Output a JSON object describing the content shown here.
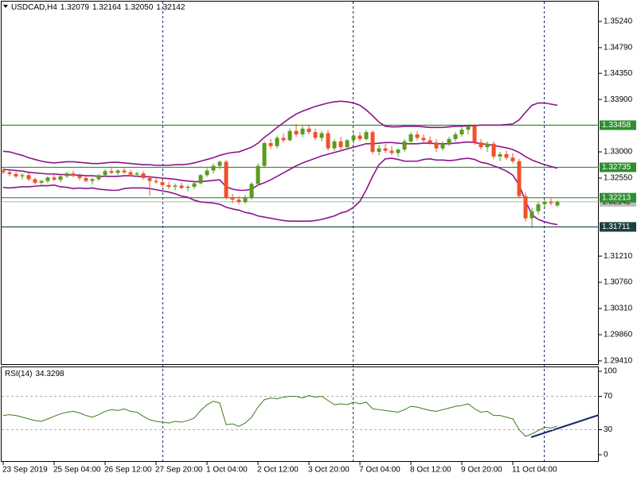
{
  "chart_data": [
    {
      "type": "candlestick",
      "title": "USDCAD,H4",
      "last_labels": [
        "1.32079",
        "1.32164",
        "1.32050",
        "1.32142"
      ],
      "categories": [
        "23 Sep 2019",
        null,
        null,
        null,
        null,
        null,
        null,
        null,
        "25 Sep 04:00",
        null,
        null,
        null,
        null,
        null,
        null,
        null,
        "26 Sep 12:00",
        null,
        null,
        null,
        null,
        null,
        null,
        null,
        "27 Sep 20:00",
        null,
        null,
        null,
        null,
        null,
        null,
        null,
        "1 Oct 04:00",
        null,
        null,
        null,
        null,
        null,
        null,
        null,
        "2 Oct 12:00",
        null,
        null,
        null,
        null,
        null,
        null,
        null,
        "3 Oct 20:00",
        null,
        null,
        null,
        null,
        null,
        null,
        null,
        "7 Oct 04:00",
        null,
        null,
        null,
        null,
        null,
        null,
        null,
        "8 Oct 12:00",
        null,
        null,
        null,
        null,
        null,
        null,
        null,
        "9 Oct 20:00",
        null,
        null,
        null,
        null,
        null,
        null,
        null,
        "11 Oct 04:00",
        null,
        null,
        null,
        null,
        null,
        null,
        null
      ],
      "candles": [
        [
          1.3268,
          1.3272,
          1.3262,
          1.3265
        ],
        [
          1.3265,
          1.3268,
          1.3258,
          1.3262
        ],
        [
          1.3262,
          1.3266,
          1.3255,
          1.3258
        ],
        [
          1.3258,
          1.3263,
          1.3252,
          1.326
        ],
        [
          1.326,
          1.3264,
          1.325,
          1.3253
        ],
        [
          1.3253,
          1.3256,
          1.3244,
          1.3247
        ],
        [
          1.3247,
          1.3252,
          1.324,
          1.325
        ],
        [
          1.325,
          1.3258,
          1.3246,
          1.3256
        ],
        [
          1.3256,
          1.3262,
          1.325,
          1.3252
        ],
        [
          1.3252,
          1.326,
          1.3248,
          1.3258
        ],
        [
          1.3258,
          1.3266,
          1.3255,
          1.3263
        ],
        [
          1.3263,
          1.3268,
          1.3256,
          1.3259
        ],
        [
          1.3259,
          1.3263,
          1.3251,
          1.3255
        ],
        [
          1.3255,
          1.3261,
          1.3248,
          1.325
        ],
        [
          1.325,
          1.3256,
          1.3244,
          1.3253
        ],
        [
          1.3253,
          1.3262,
          1.325,
          1.326
        ],
        [
          1.326,
          1.327,
          1.3257,
          1.3267
        ],
        [
          1.3267,
          1.3272,
          1.3262,
          1.3264
        ],
        [
          1.3264,
          1.327,
          1.326,
          1.3268
        ],
        [
          1.3268,
          1.3272,
          1.3262,
          1.3265
        ],
        [
          1.3265,
          1.3269,
          1.3258,
          1.3261
        ],
        [
          1.3261,
          1.3266,
          1.3257,
          1.3263
        ],
        [
          1.3263,
          1.3267,
          1.3252,
          1.3255
        ],
        [
          1.3255,
          1.3259,
          1.3225,
          1.325
        ],
        [
          1.325,
          1.3256,
          1.3245,
          1.3248
        ],
        [
          1.3248,
          1.3253,
          1.324,
          1.3243
        ],
        [
          1.3243,
          1.3248,
          1.3236,
          1.324
        ],
        [
          1.324,
          1.3246,
          1.3234,
          1.3242
        ],
        [
          1.3242,
          1.3247,
          1.3236,
          1.3238
        ],
        [
          1.3238,
          1.3243,
          1.3232,
          1.324
        ],
        [
          1.324,
          1.3248,
          1.3236,
          1.3246
        ],
        [
          1.3246,
          1.3262,
          1.3244,
          1.326
        ],
        [
          1.326,
          1.3272,
          1.3257,
          1.3268
        ],
        [
          1.3268,
          1.328,
          1.3263,
          1.3276
        ],
        [
          1.3276,
          1.3285,
          1.327,
          1.3283
        ],
        [
          1.3283,
          1.3286,
          1.3218,
          1.3222
        ],
        [
          1.3222,
          1.3228,
          1.3212,
          1.3218
        ],
        [
          1.3218,
          1.3224,
          1.321,
          1.3214
        ],
        [
          1.3214,
          1.3226,
          1.3211,
          1.3222
        ],
        [
          1.3222,
          1.3248,
          1.3218,
          1.3245
        ],
        [
          1.3245,
          1.328,
          1.3242,
          1.3276
        ],
        [
          1.3276,
          1.3318,
          1.3274,
          1.3315
        ],
        [
          1.3315,
          1.3322,
          1.3305,
          1.331
        ],
        [
          1.331,
          1.3328,
          1.3306,
          1.3324
        ],
        [
          1.3324,
          1.3332,
          1.3316,
          1.332
        ],
        [
          1.332,
          1.334,
          1.3318,
          1.3336
        ],
        [
          1.3336,
          1.3348,
          1.3326,
          1.333
        ],
        [
          1.333,
          1.3344,
          1.3325,
          1.334
        ],
        [
          1.334,
          1.3346,
          1.333,
          1.3334
        ],
        [
          1.3334,
          1.334,
          1.332,
          1.3324
        ],
        [
          1.3324,
          1.3336,
          1.3318,
          1.3332
        ],
        [
          1.3332,
          1.3338,
          1.3302,
          1.3306
        ],
        [
          1.3306,
          1.3322,
          1.3302,
          1.3318
        ],
        [
          1.3318,
          1.3326,
          1.3304,
          1.3308
        ],
        [
          1.3308,
          1.3322,
          1.3305,
          1.332
        ],
        [
          1.332,
          1.3332,
          1.3314,
          1.3328
        ],
        [
          1.3328,
          1.3334,
          1.3318,
          1.3322
        ],
        [
          1.3322,
          1.3338,
          1.3319,
          1.3334
        ],
        [
          1.3334,
          1.3337,
          1.3296,
          1.33
        ],
        [
          1.33,
          1.3312,
          1.3294,
          1.3306
        ],
        [
          1.3306,
          1.3314,
          1.3298,
          1.3302
        ],
        [
          1.3302,
          1.331,
          1.3294,
          1.3298
        ],
        [
          1.3298,
          1.3306,
          1.3292,
          1.3304
        ],
        [
          1.3304,
          1.3322,
          1.33,
          1.3318
        ],
        [
          1.3318,
          1.3334,
          1.3314,
          1.333
        ],
        [
          1.333,
          1.3336,
          1.332,
          1.3324
        ],
        [
          1.3324,
          1.333,
          1.3316,
          1.332
        ],
        [
          1.332,
          1.3326,
          1.3312,
          1.3316
        ],
        [
          1.3316,
          1.3322,
          1.33,
          1.3306
        ],
        [
          1.3306,
          1.3318,
          1.3302,
          1.3314
        ],
        [
          1.3314,
          1.3326,
          1.331,
          1.3322
        ],
        [
          1.3322,
          1.3334,
          1.3318,
          1.333
        ],
        [
          1.333,
          1.3342,
          1.3326,
          1.3338
        ],
        [
          1.3338,
          1.3348,
          1.333,
          1.3344
        ],
        [
          1.3344,
          1.3348,
          1.3312,
          1.3316
        ],
        [
          1.3316,
          1.3322,
          1.3304,
          1.3308
        ],
        [
          1.3308,
          1.3318,
          1.33,
          1.3314
        ],
        [
          1.3314,
          1.3318,
          1.3288,
          1.3292
        ],
        [
          1.3292,
          1.33,
          1.3284,
          1.3296
        ],
        [
          1.3296,
          1.3302,
          1.3286,
          1.329
        ],
        [
          1.329,
          1.3298,
          1.328,
          1.3284
        ],
        [
          1.3284,
          1.3288,
          1.322,
          1.3224
        ],
        [
          1.3224,
          1.323,
          1.318,
          1.3186
        ],
        [
          1.3186,
          1.3204,
          1.3169,
          1.3198
        ],
        [
          1.3198,
          1.3214,
          1.3192,
          1.321
        ],
        [
          1.321,
          1.3218,
          1.3204,
          1.3214
        ],
        [
          1.3214,
          1.322,
          1.3208,
          1.3212
        ],
        [
          1.32079,
          1.32164,
          1.3205,
          1.32142
        ]
      ],
      "up_color": "#5b9a1f",
      "down_color": "#f0502a",
      "bands": {
        "color": "#8b158b",
        "upper": [
          1.3301,
          1.33,
          1.3297,
          1.3294,
          1.329,
          1.3287,
          1.3284,
          1.3282,
          1.3281,
          1.3282,
          1.3283,
          1.3283,
          1.3282,
          1.3281,
          1.328,
          1.328,
          1.3281,
          1.3282,
          1.3282,
          1.3281,
          1.328,
          1.3279,
          1.3278,
          1.3278,
          1.3277,
          1.3277,
          1.3277,
          1.3278,
          1.3278,
          1.3279,
          1.3281,
          1.3284,
          1.3287,
          1.329,
          1.3294,
          1.3297,
          1.3299,
          1.33,
          1.3304,
          1.3308,
          1.3315,
          1.3325,
          1.3333,
          1.3342,
          1.335,
          1.3358,
          1.3365,
          1.337,
          1.3374,
          1.3378,
          1.3381,
          1.3384,
          1.3386,
          1.3387,
          1.3386,
          1.3384,
          1.338,
          1.3372,
          1.3362,
          1.3351,
          1.3344,
          1.3343,
          1.3343,
          1.3344,
          1.3344,
          1.3344,
          1.3343,
          1.3342,
          1.3342,
          1.3342,
          1.3343,
          1.3344,
          1.3344,
          1.3345,
          1.3345,
          1.3346,
          1.3346,
          1.3346,
          1.3346,
          1.3347,
          1.3348,
          1.3355,
          1.3368,
          1.338,
          1.3384,
          1.3384,
          1.3382,
          1.338
        ],
        "middle": [
          1.327,
          1.3269,
          1.3268,
          1.3267,
          1.3265,
          1.3264,
          1.3263,
          1.3262,
          1.3262,
          1.3261,
          1.3261,
          1.326,
          1.326,
          1.3259,
          1.3259,
          1.3258,
          1.3258,
          1.3258,
          1.3258,
          1.3259,
          1.3259,
          1.3258,
          1.3258,
          1.3257,
          1.3256,
          1.3255,
          1.3254,
          1.3253,
          1.3251,
          1.325,
          1.3249,
          1.3249,
          1.325,
          1.3251,
          1.3252,
          1.324,
          1.3236,
          1.3234,
          1.3234,
          1.3236,
          1.3243,
          1.3247,
          1.3252,
          1.3258,
          1.3264,
          1.327,
          1.3276,
          1.3281,
          1.3285,
          1.3289,
          1.3293,
          1.3296,
          1.3299,
          1.3302,
          1.3305,
          1.3308,
          1.3311,
          1.3314,
          1.3314,
          1.3315,
          1.3316,
          1.3316,
          1.3315,
          1.3314,
          1.3314,
          1.3314,
          1.3315,
          1.3315,
          1.3314,
          1.3314,
          1.3314,
          1.3315,
          1.3316,
          1.3317,
          1.3316,
          1.3314,
          1.3313,
          1.3311,
          1.3309,
          1.3307,
          1.3304,
          1.3299,
          1.3292,
          1.3286,
          1.3282,
          1.3278,
          1.3275,
          1.3272
        ],
        "lower": [
          1.3239,
          1.3238,
          1.3239,
          1.324,
          1.324,
          1.3241,
          1.3242,
          1.3242,
          1.3243,
          1.324,
          1.3239,
          1.3237,
          1.3238,
          1.3237,
          1.3238,
          1.3236,
          1.3235,
          1.3234,
          1.3234,
          1.3237,
          1.3238,
          1.3238,
          1.3238,
          1.3237,
          1.3235,
          1.3233,
          1.3231,
          1.3228,
          1.3224,
          1.3222,
          1.3217,
          1.3214,
          1.3213,
          1.3212,
          1.321,
          1.3205,
          1.3202,
          1.32,
          1.3196,
          1.3194,
          1.319,
          1.3188,
          1.3186,
          1.3184,
          1.3182,
          1.3181,
          1.3181,
          1.3181,
          1.3181,
          1.3182,
          1.3184,
          1.3187,
          1.319,
          1.3195,
          1.3198,
          1.3205,
          1.3215,
          1.3235,
          1.3258,
          1.3278,
          1.3288,
          1.3289,
          1.3287,
          1.3284,
          1.3284,
          1.3284,
          1.3287,
          1.3288,
          1.3286,
          1.3286,
          1.3285,
          1.3286,
          1.3288,
          1.3289,
          1.3287,
          1.3282,
          1.328,
          1.3276,
          1.3272,
          1.3267,
          1.326,
          1.3243,
          1.3216,
          1.3192,
          1.3184,
          1.318,
          1.3177,
          1.3175
        ]
      },
      "levels": [
        {
          "value": 1.33458,
          "color": "#2f8f2f"
        },
        {
          "value": 1.32735,
          "color": "#2f8f2f"
        },
        {
          "value": 1.32213,
          "color": "#2f8f2f"
        },
        {
          "value": 1.31711,
          "color": "#1e3f3f"
        }
      ],
      "ylim": [
        1.29355,
        1.35581
      ],
      "yticks": [
        {
          "value": 1.3524,
          "label": "1.35240"
        },
        {
          "value": 1.3479,
          "label": "1.34790"
        },
        {
          "value": 1.3435,
          "label": "1.34350"
        },
        {
          "value": 1.339,
          "label": "1.33900"
        },
        {
          "value": 1.33,
          "label": "1.33000"
        },
        {
          "value": 1.3255,
          "label": "1.32550"
        },
        {
          "value": 1.3121,
          "label": "1.31210"
        },
        {
          "value": 1.3076,
          "label": "1.30760"
        },
        {
          "value": 1.3031,
          "label": "1.30310"
        },
        {
          "value": 1.2986,
          "label": "1.29860"
        },
        {
          "value": 1.2941,
          "label": "1.29410"
        }
      ]
    },
    {
      "type": "line",
      "title": "RSI(14)",
      "color": "#3d7a1a",
      "values": [
        47,
        48,
        47,
        45,
        43,
        41,
        40,
        43,
        46,
        49,
        51,
        52,
        50,
        47,
        45,
        48,
        52,
        54,
        53,
        55,
        52,
        51,
        46,
        42,
        40,
        39,
        38,
        40,
        39,
        41,
        44,
        53,
        60,
        64,
        62,
        36,
        37,
        34,
        38,
        45,
        57,
        66,
        68,
        67,
        69,
        70,
        70,
        68,
        71,
        69,
        70,
        65,
        60,
        61,
        60,
        63,
        61,
        63,
        55,
        54,
        53,
        52,
        51,
        54,
        58,
        57,
        55,
        53,
        52,
        54,
        56,
        58,
        59,
        61,
        55,
        51,
        52,
        47,
        47,
        45,
        43,
        30,
        22,
        25,
        29,
        33,
        32,
        34.3298
      ],
      "ylim": [
        -8.6,
        104.8
      ],
      "yticks": [
        100,
        70,
        30,
        0
      ],
      "levels": [
        70,
        30
      ]
    }
  ]
}
